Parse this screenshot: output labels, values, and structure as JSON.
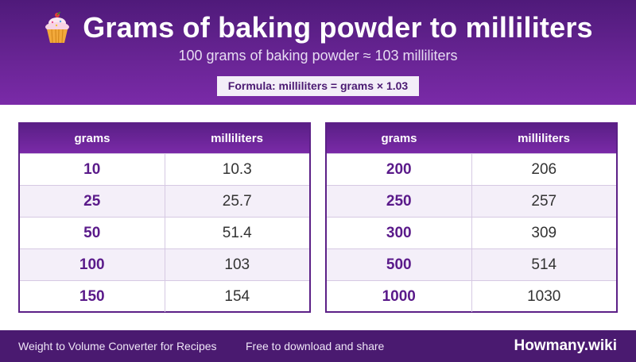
{
  "header": {
    "title": "Grams of baking powder to milliliters",
    "subtitle": "100 grams of baking powder ≈ 103 milliliters",
    "formula": "Formula: milliliters = grams × 1.03",
    "icon": "cupcake-icon"
  },
  "tables": {
    "left": {
      "col1": "grams",
      "col2": "milliliters",
      "rows": [
        {
          "g": "10",
          "ml": "10.3"
        },
        {
          "g": "25",
          "ml": "25.7"
        },
        {
          "g": "50",
          "ml": "51.4"
        },
        {
          "g": "100",
          "ml": "103"
        },
        {
          "g": "150",
          "ml": "154"
        }
      ]
    },
    "right": {
      "col1": "grams",
      "col2": "milliliters",
      "rows": [
        {
          "g": "200",
          "ml": "206"
        },
        {
          "g": "250",
          "ml": "257"
        },
        {
          "g": "300",
          "ml": "309"
        },
        {
          "g": "500",
          "ml": "514"
        },
        {
          "g": "1000",
          "ml": "1030"
        }
      ]
    }
  },
  "footer": {
    "left": "Weight to Volume Converter for Recipes",
    "middle": "Free to download and share",
    "brand": "Howmany.wiki"
  },
  "colors": {
    "accent": "#6a2596",
    "footer": "#4a1a70"
  }
}
